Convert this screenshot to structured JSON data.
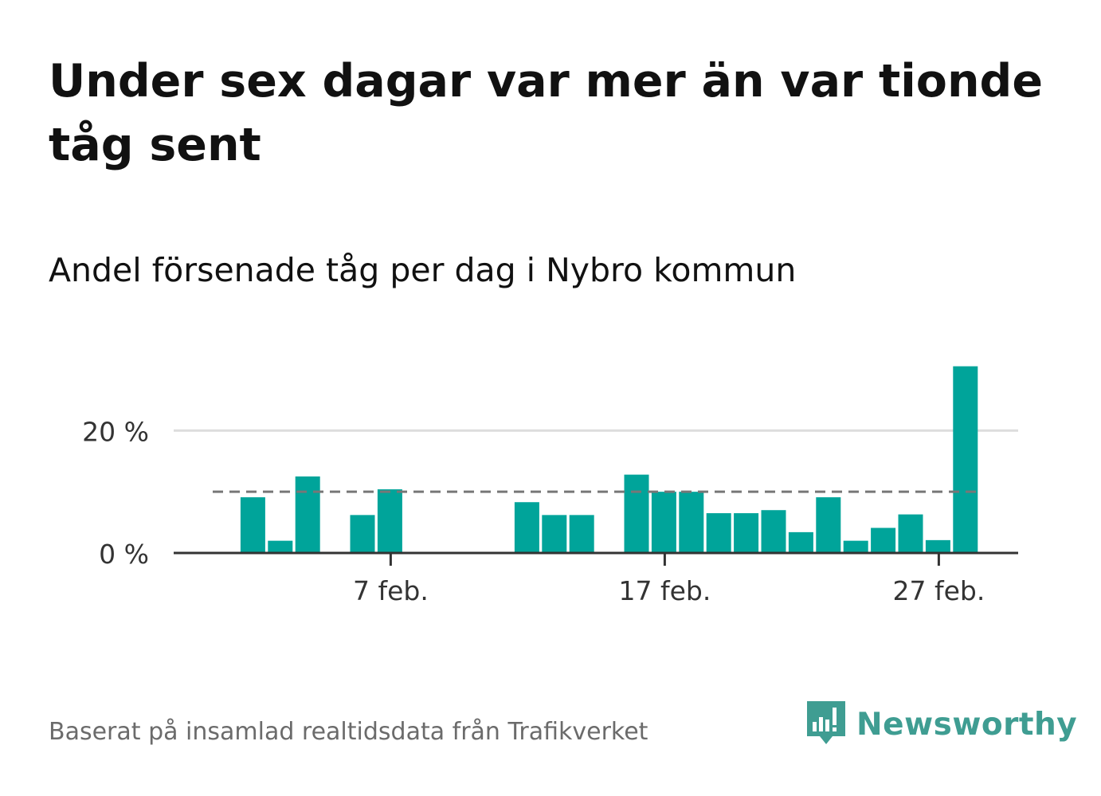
{
  "title": "Under sex dagar var mer än var tionde tåg sent",
  "subtitle": "Andel försenade tåg per dag i Nybro kommun",
  "source": "Baserat på insamlad realtidsdata från Trafikverket",
  "brand": {
    "name": "Newsworthy",
    "color": "#3f9d92",
    "icon": "newsworthy-logo-icon"
  },
  "chart_data": {
    "type": "bar",
    "x": [
      "1 feb.",
      "2 feb.",
      "3 feb.",
      "4 feb.",
      "5 feb.",
      "6 feb.",
      "7 feb.",
      "8 feb.",
      "9 feb.",
      "10 feb.",
      "11 feb.",
      "12 feb.",
      "13 feb.",
      "14 feb.",
      "15 feb.",
      "16 feb.",
      "17 feb.",
      "18 feb.",
      "19 feb.",
      "20 feb.",
      "21 feb.",
      "22 feb.",
      "23 feb.",
      "24 feb.",
      "25 feb.",
      "26 feb.",
      "27 feb.",
      "28 feb."
    ],
    "values": [
      null,
      9.1,
      2.0,
      12.5,
      null,
      6.2,
      10.4,
      null,
      null,
      null,
      null,
      8.3,
      6.2,
      6.2,
      null,
      12.8,
      10.0,
      10.0,
      6.5,
      6.5,
      7.0,
      3.4,
      9.1,
      2.0,
      4.1,
      6.3,
      2.1,
      30.5
    ],
    "xticks": [
      "7 feb.",
      "17 feb.",
      "27 feb."
    ],
    "yticks": [
      "0 %",
      "20 %"
    ],
    "ytick_values": [
      0,
      20
    ],
    "ylim": [
      0,
      31.5
    ],
    "reference_line": 10,
    "grid": true,
    "colors": {
      "bar": "#00a49a",
      "grid": "#dddddd",
      "axis": "#333333",
      "reference": "#777777"
    }
  }
}
